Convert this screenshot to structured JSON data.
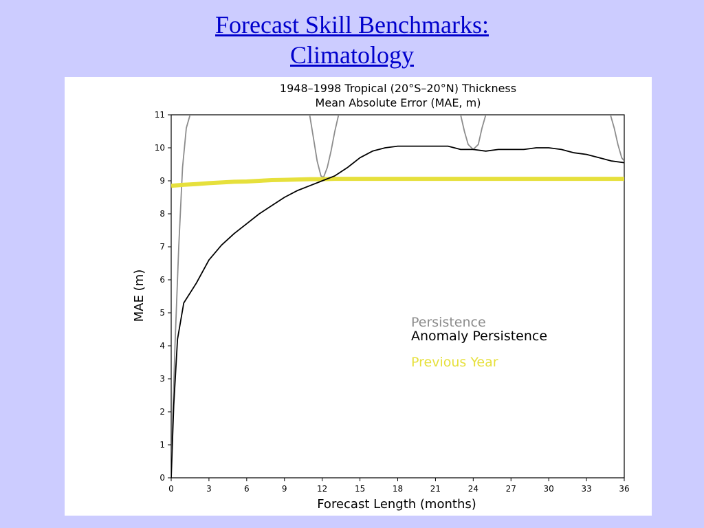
{
  "slide": {
    "title_line1": "Forecast Skill Benchmarks:",
    "title_line2": "Climatology"
  },
  "chart_data": {
    "type": "line",
    "title": "1948–1998 Tropical (20°S–20°N) Thickness",
    "subtitle": "Mean Absolute Error (MAE, m)",
    "xlabel": "Forecast Length (months)",
    "ylabel": "MAE (m)",
    "xlim": [
      0,
      36
    ],
    "ylim": [
      0,
      11
    ],
    "xticks": [
      0,
      3,
      6,
      9,
      12,
      15,
      18,
      21,
      24,
      27,
      30,
      33,
      36
    ],
    "yticks": [
      0,
      1,
      2,
      3,
      4,
      5,
      6,
      7,
      8,
      9,
      10,
      11
    ],
    "grid": false,
    "legend_position": "lower-right",
    "series": [
      {
        "name": "Persistence",
        "color": "#8c8c8c",
        "segments": [
          {
            "x": [
              0,
              0.3,
              0.6,
              0.9,
              1.2,
              1.5
            ],
            "y": [
              0.2,
              4.0,
              7.0,
              9.4,
              10.6,
              11.0
            ]
          },
          {
            "x": [
              11.0,
              11.3,
              11.6,
              11.9,
              12.1,
              12.4,
              12.7,
              13.0,
              13.3
            ],
            "y": [
              11.0,
              10.3,
              9.6,
              9.15,
              9.1,
              9.4,
              9.9,
              10.5,
              11.0
            ]
          },
          {
            "x": [
              23.0,
              23.3,
              23.6,
              24.0,
              24.4,
              24.7,
              25.0
            ],
            "y": [
              11.0,
              10.5,
              10.1,
              9.95,
              10.1,
              10.6,
              11.0
            ]
          },
          {
            "x": [
              34.9,
              35.2,
              35.5,
              35.8,
              36.0
            ],
            "y": [
              11.0,
              10.6,
              10.1,
              9.7,
              9.6
            ]
          }
        ]
      },
      {
        "name": "Anomaly Persistence",
        "color": "#000000",
        "x": [
          0,
          0.2,
          0.5,
          1,
          2,
          3,
          4,
          5,
          6,
          7,
          8,
          9,
          10,
          11,
          12,
          13,
          14,
          15,
          16,
          17,
          18,
          19,
          20,
          21,
          22,
          23,
          24,
          25,
          26,
          27,
          28,
          29,
          30,
          31,
          32,
          33,
          34,
          35,
          36
        ],
        "y": [
          0.0,
          2.2,
          4.2,
          5.3,
          5.9,
          6.6,
          7.05,
          7.4,
          7.7,
          8.0,
          8.25,
          8.5,
          8.7,
          8.85,
          9.0,
          9.15,
          9.4,
          9.7,
          9.9,
          10.0,
          10.05,
          10.05,
          10.05,
          10.05,
          10.05,
          9.95,
          9.95,
          9.9,
          9.95,
          9.95,
          9.95,
          10.0,
          10.0,
          9.95,
          9.85,
          9.8,
          9.7,
          9.6,
          9.55
        ]
      },
      {
        "name": "Previous Year",
        "color": "#e6e03c",
        "x": [
          0,
          1,
          2,
          3,
          4,
          5,
          6,
          7,
          8,
          9,
          10,
          11,
          12,
          13,
          14,
          15,
          16,
          17,
          18,
          19,
          20,
          21,
          22,
          23,
          24,
          25,
          26,
          27,
          28,
          29,
          30,
          31,
          32,
          33,
          34,
          35,
          36
        ],
        "y": [
          8.85,
          8.88,
          8.9,
          8.93,
          8.95,
          8.97,
          8.98,
          9.0,
          9.02,
          9.03,
          9.04,
          9.05,
          9.05,
          9.06,
          9.06,
          9.06,
          9.06,
          9.06,
          9.06,
          9.06,
          9.06,
          9.06,
          9.06,
          9.06,
          9.06,
          9.06,
          9.06,
          9.06,
          9.06,
          9.06,
          9.06,
          9.06,
          9.06,
          9.06,
          9.06,
          9.06,
          9.06
        ]
      }
    ]
  }
}
